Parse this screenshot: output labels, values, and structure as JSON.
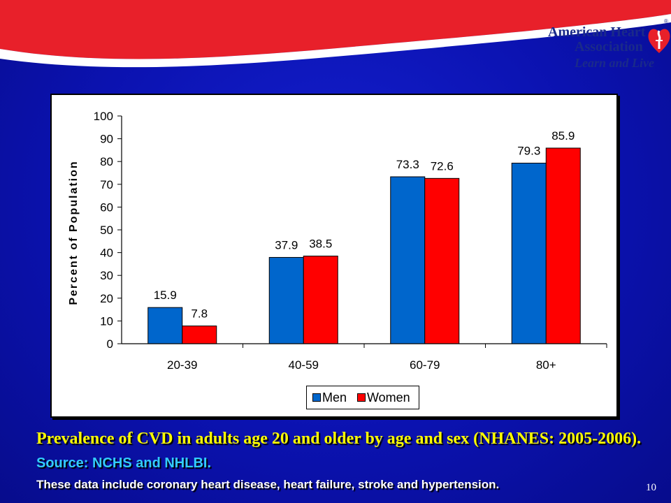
{
  "brand": {
    "name_line1": "American Heart",
    "name_line2": "Association",
    "tagline": "Learn and Live",
    "registered_mark": "®",
    "colors": {
      "banner_red": "#e8202a",
      "slide_blue": "#0b12b0",
      "brand_navy": "#1a2a8a"
    },
    "icon": "heart-torch-icon"
  },
  "chart_data": {
    "type": "bar",
    "categories": [
      "20-39",
      "40-59",
      "60-79",
      "80+"
    ],
    "series": [
      {
        "name": "Men",
        "values": [
          15.9,
          37.9,
          73.3,
          79.3
        ],
        "labels": [
          "15.9",
          "37.9",
          "73.3",
          "79.3"
        ],
        "color": "#0066cc"
      },
      {
        "name": "Women",
        "values": [
          7.8,
          38.5,
          72.6,
          85.9
        ],
        "labels": [
          "7.8",
          "38.5",
          "72.6",
          "85.9"
        ],
        "color": "#ff0000"
      }
    ],
    "ylabel": "Percent of Population",
    "xlabel": "",
    "ylim": [
      0,
      100
    ],
    "yticks": [
      0,
      10,
      20,
      30,
      40,
      50,
      60,
      70,
      80,
      90,
      100
    ],
    "grid": false,
    "legend_position": "bottom-center"
  },
  "caption": {
    "title": "Prevalence of CVD in adults age 20 and older by age and sex (NHANES: 2005-2006).",
    "source": "Source: NCHS and NHLBI.",
    "note": "These data include coronary heart disease, heart failure, stroke and hypertension."
  },
  "page_number": "10"
}
